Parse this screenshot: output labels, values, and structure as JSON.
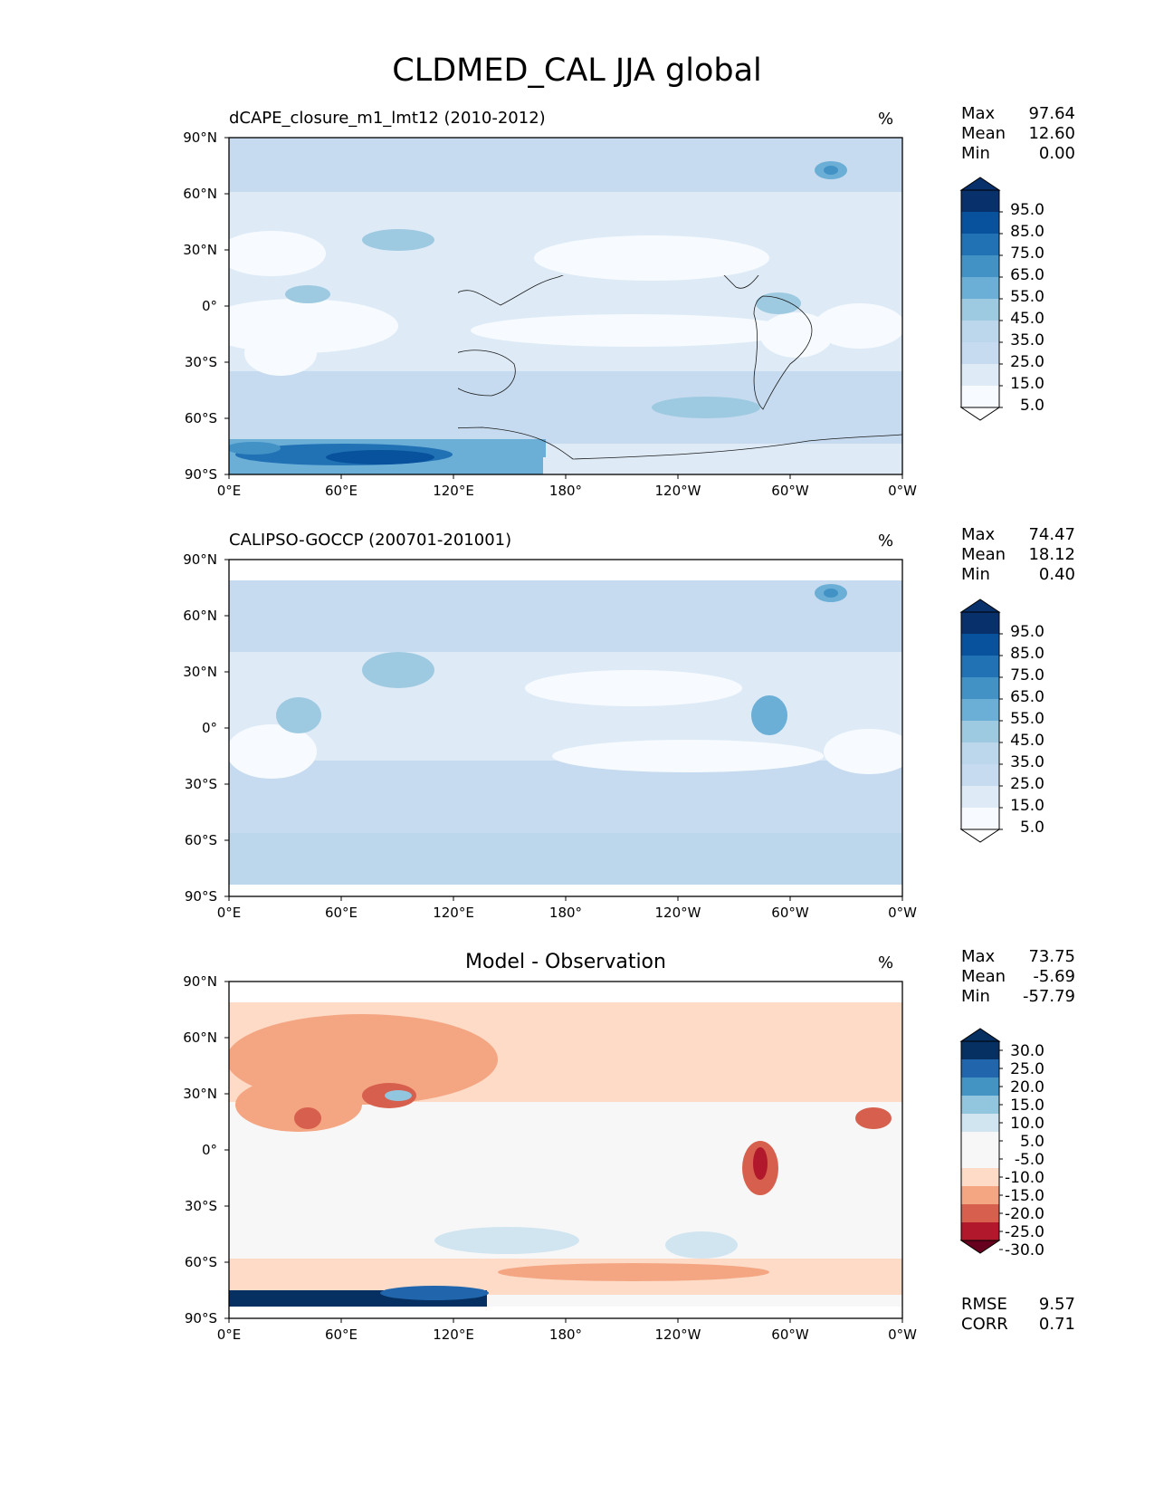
{
  "title": "CLDMED_CAL JJA global",
  "panels": [
    {
      "title": "dCAPE_closure_m1_lmt12 (2010-2012)",
      "unit": "%",
      "stats": [
        {
          "label": "Max",
          "value": "97.64"
        },
        {
          "label": "Mean",
          "value": "12.60"
        },
        {
          "label": "Min",
          "value": "0.00"
        }
      ],
      "colorbar": {
        "labels": [
          "95.0",
          "85.0",
          "75.0",
          "65.0",
          "55.0",
          "45.0",
          "35.0",
          "25.0",
          "15.0",
          "5.0"
        ],
        "colors": [
          "#08306b",
          "#08519c",
          "#2171b5",
          "#4292c6",
          "#6baed6",
          "#9ecae1",
          "#bcd7eb",
          "#c6dbef",
          "#deebf7",
          "#f7fbff"
        ]
      }
    },
    {
      "title": "CALIPSO-GOCCP (200701-201001)",
      "unit": "%",
      "stats": [
        {
          "label": "Max",
          "value": "74.47"
        },
        {
          "label": "Mean",
          "value": "18.12"
        },
        {
          "label": "Min",
          "value": "0.40"
        }
      ],
      "colorbar": {
        "labels": [
          "95.0",
          "85.0",
          "75.0",
          "65.0",
          "55.0",
          "45.0",
          "35.0",
          "25.0",
          "15.0",
          "5.0"
        ],
        "colors": [
          "#08306b",
          "#08519c",
          "#2171b5",
          "#4292c6",
          "#6baed6",
          "#9ecae1",
          "#bcd7eb",
          "#c6dbef",
          "#deebf7",
          "#f7fbff"
        ]
      }
    },
    {
      "title": "Model - Observation",
      "unit": "%",
      "stats": [
        {
          "label": "Max",
          "value": "73.75"
        },
        {
          "label": "Mean",
          "value": "-5.69"
        },
        {
          "label": "Min",
          "value": "-57.79"
        }
      ],
      "colorbar": {
        "labels": [
          "30.0",
          "25.0",
          "20.0",
          "15.0",
          "10.0",
          "5.0",
          "-5.0",
          "-10.0",
          "-15.0",
          "-20.0",
          "-25.0",
          "-30.0"
        ],
        "colors": [
          "#053061",
          "#2166ac",
          "#4393c3",
          "#92c5de",
          "#d1e5f0",
          "#f7f7f7",
          "#f7f7f7",
          "#fddbc7",
          "#f4a582",
          "#d6604d",
          "#b2182b",
          "#67001f"
        ]
      },
      "metrics": [
        {
          "label": "RMSE",
          "value": "9.57"
        },
        {
          "label": "CORR",
          "value": "0.71"
        }
      ]
    }
  ],
  "lat_ticks": [
    "90°N",
    "60°N",
    "30°N",
    "0°",
    "30°S",
    "60°S",
    "90°S"
  ],
  "lon_ticks": [
    "0°E",
    "60°E",
    "120°E",
    "180°",
    "120°W",
    "60°W",
    "0°W"
  ]
}
